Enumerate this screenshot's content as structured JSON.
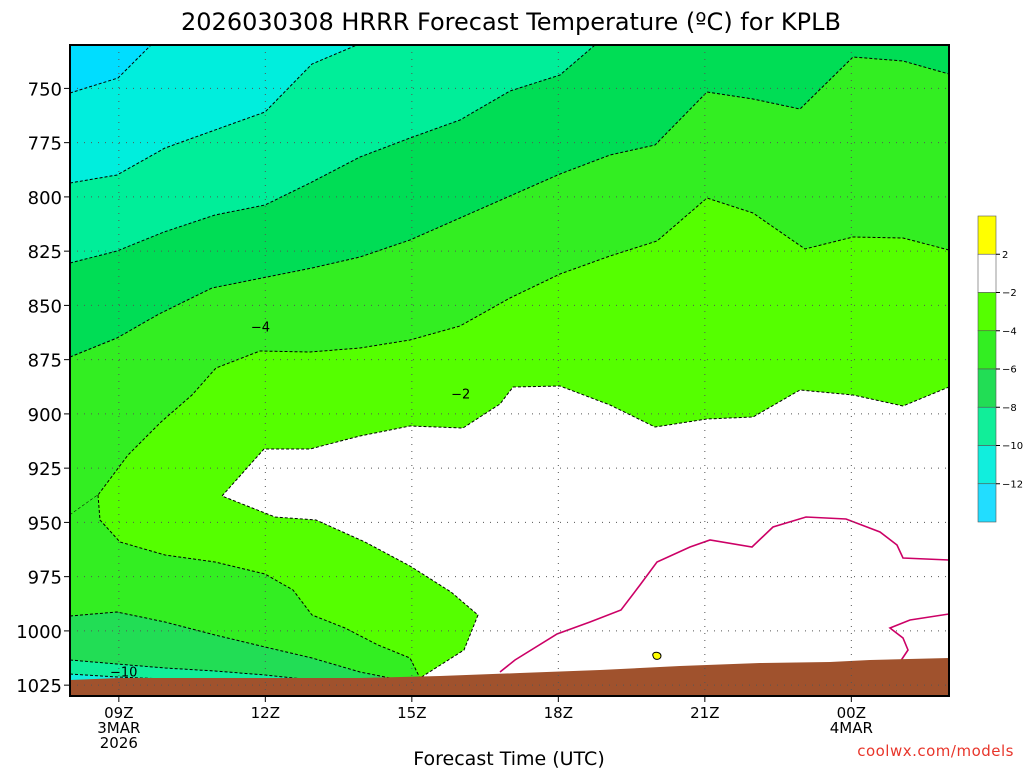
{
  "chart_data": {
    "type": "contour",
    "title": "2026030308 HRRR Forecast Temperature (ºC) for KPLB",
    "xlabel": "Forecast Time (UTC)",
    "ylabel": "",
    "x_ticks": [
      {
        "lines": [
          "09Z",
          "3MAR",
          "2026"
        ],
        "hour": 9
      },
      {
        "lines": [
          "12Z"
        ],
        "hour": 12
      },
      {
        "lines": [
          "15Z"
        ],
        "hour": 15
      },
      {
        "lines": [
          "18Z"
        ],
        "hour": 18
      },
      {
        "lines": [
          "21Z"
        ],
        "hour": 21
      },
      {
        "lines": [
          "00Z",
          "4MAR"
        ],
        "hour": 24
      }
    ],
    "x_range_hours": [
      8,
      26
    ],
    "y_axis": "pressure (hPa), inverted",
    "y_ticks": [
      750,
      775,
      800,
      825,
      850,
      875,
      900,
      925,
      950,
      975,
      1000,
      1025
    ],
    "y_range": [
      730,
      1030
    ],
    "contour_labels": [
      {
        "text": "-4",
        "hour": 11.9,
        "p": 862
      },
      {
        "text": "-2",
        "hour": 16.0,
        "p": 893
      },
      {
        "text": "-10",
        "hour": 9.1,
        "p": 1021
      }
    ],
    "colorbar": {
      "bounds": [
        4,
        2,
        -2,
        -4,
        -6,
        -8,
        -10,
        -12,
        -14
      ],
      "labels": [
        "2",
        "-2",
        "-4",
        "-6",
        "-8",
        "-10",
        "-12"
      ],
      "colors": [
        "#ffff00",
        "#ffffff",
        "#55ff00",
        "#33ee22",
        "#22dd55",
        "#11ee99",
        "#11eedd",
        "#22ddff"
      ]
    },
    "grid": true,
    "credit": "coolwx.com/models"
  }
}
